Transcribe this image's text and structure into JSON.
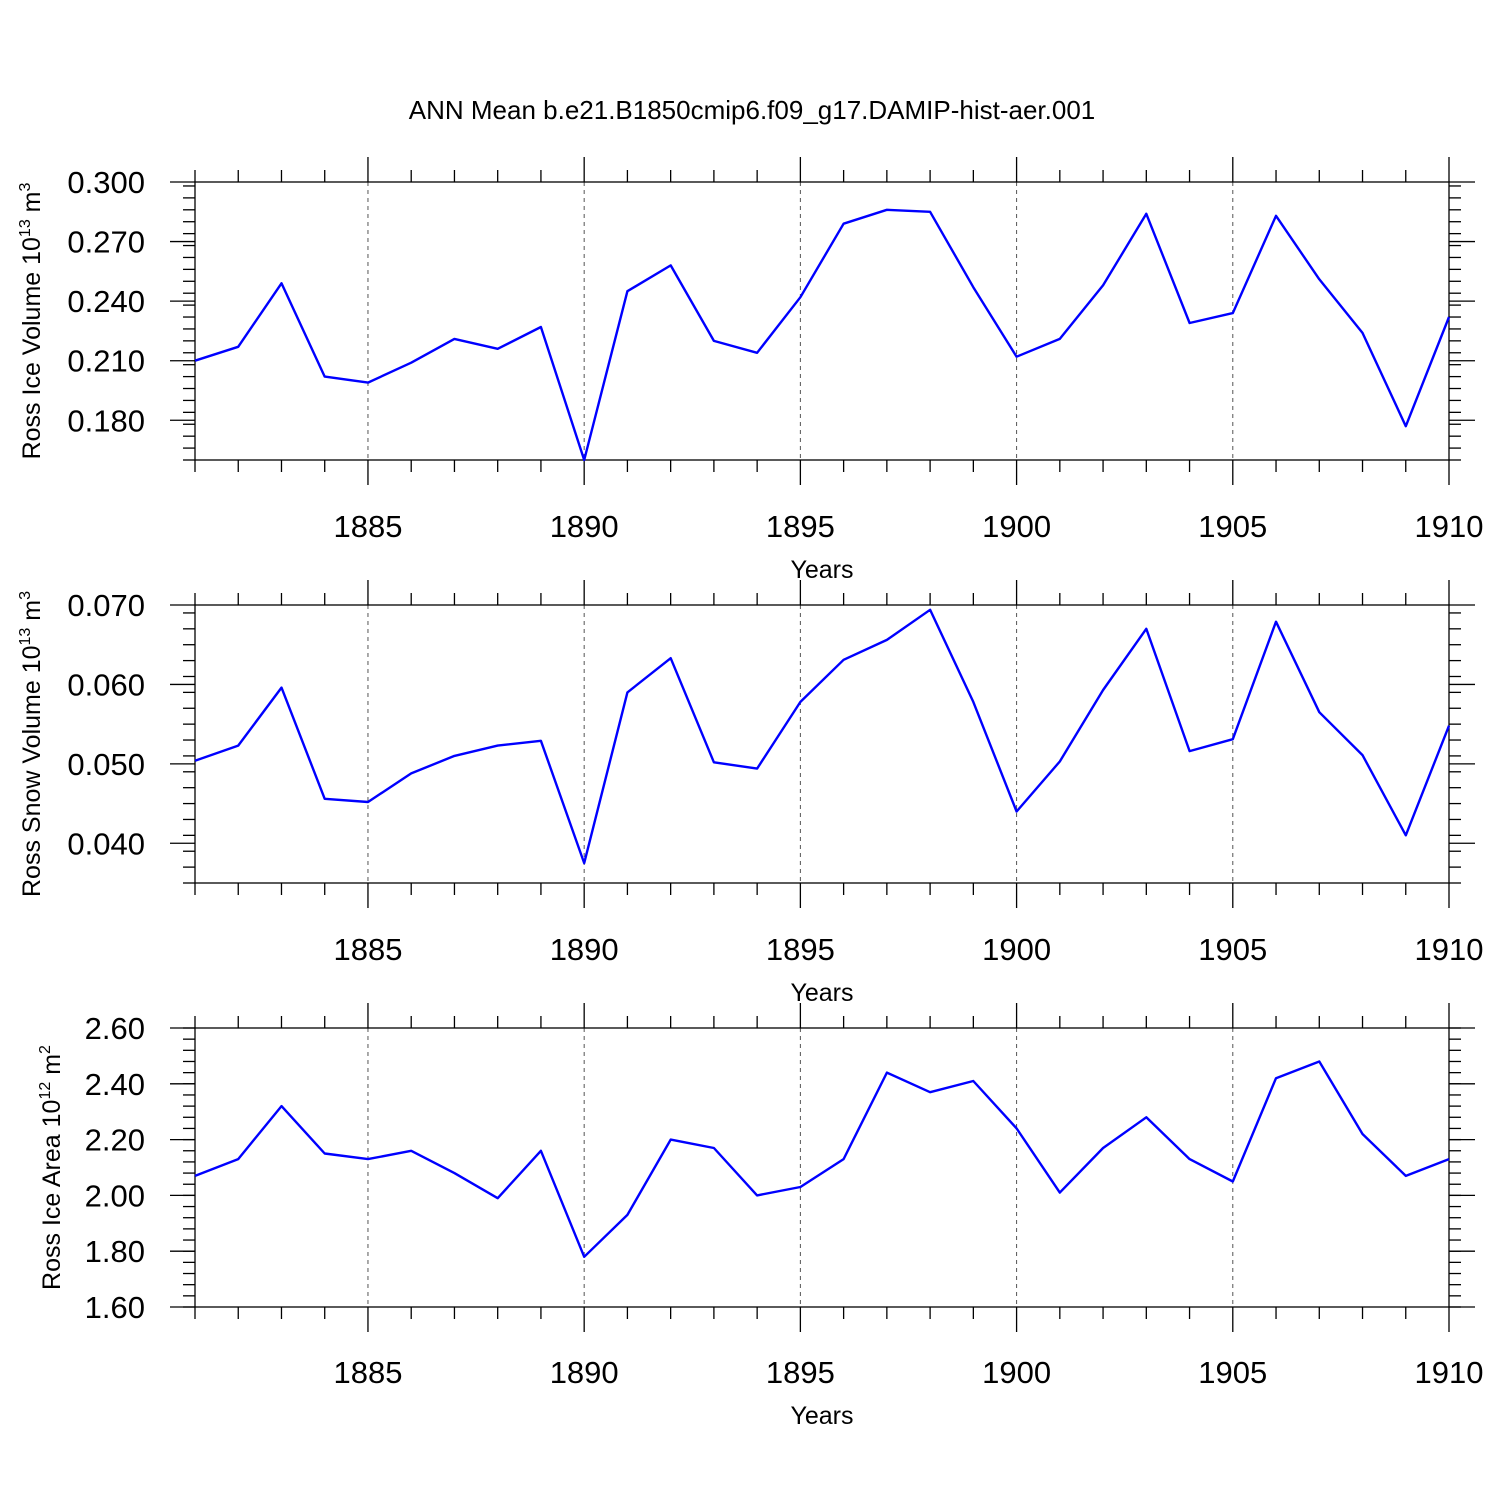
{
  "title": "ANN Mean b.e21.B1850cmip6.f09_g17.DAMIP-hist-aer.001",
  "colors": {
    "line": "#0000ff",
    "axis": "#000000",
    "grid": "#555555"
  },
  "chart_data": [
    {
      "type": "line",
      "xlabel": "Years",
      "ylabel": {
        "prefix": "Ross Ice Volume 10",
        "exp": "13",
        "unit": " m",
        "unit_exp": "3"
      },
      "xlim": [
        1881,
        1910
      ],
      "ylim": [
        0.16,
        0.3
      ],
      "xticks": [
        1885,
        1890,
        1895,
        1900,
        1905,
        1910
      ],
      "yticks": [
        0.18,
        0.21,
        0.24,
        0.27,
        0.3
      ],
      "ytick_labels": [
        "0.180",
        "0.210",
        "0.240",
        "0.270",
        "0.300"
      ],
      "grid_x": "dashed",
      "x": [
        1881,
        1882,
        1883,
        1884,
        1885,
        1886,
        1887,
        1888,
        1889,
        1890,
        1891,
        1892,
        1893,
        1894,
        1895,
        1896,
        1897,
        1898,
        1899,
        1900,
        1901,
        1902,
        1903,
        1904,
        1905,
        1906,
        1907,
        1908,
        1909,
        1910
      ],
      "y": [
        0.21,
        0.217,
        0.249,
        0.202,
        0.199,
        0.209,
        0.221,
        0.216,
        0.227,
        0.16,
        0.245,
        0.258,
        0.22,
        0.214,
        0.242,
        0.279,
        0.286,
        0.285,
        0.247,
        0.212,
        0.221,
        0.248,
        0.284,
        0.229,
        0.234,
        0.283,
        0.251,
        0.224,
        0.177,
        0.232
      ]
    },
    {
      "type": "line",
      "xlabel": "Years",
      "ylabel": {
        "prefix": "Ross Snow Volume 10",
        "exp": "13",
        "unit": " m",
        "unit_exp": "3"
      },
      "xlim": [
        1881,
        1910
      ],
      "ylim": [
        0.035,
        0.07
      ],
      "xticks": [
        1885,
        1890,
        1895,
        1900,
        1905,
        1910
      ],
      "yticks": [
        0.04,
        0.05,
        0.06,
        0.07
      ],
      "ytick_labels": [
        "0.040",
        "0.050",
        "0.060",
        "0.070"
      ],
      "grid_x": "dashed",
      "x": [
        1881,
        1882,
        1883,
        1884,
        1885,
        1886,
        1887,
        1888,
        1889,
        1890,
        1891,
        1892,
        1893,
        1894,
        1895,
        1896,
        1897,
        1898,
        1899,
        1900,
        1901,
        1902,
        1903,
        1904,
        1905,
        1906,
        1907,
        1908,
        1909,
        1910
      ],
      "y": [
        0.0504,
        0.0523,
        0.0596,
        0.0456,
        0.0452,
        0.0488,
        0.051,
        0.0523,
        0.0529,
        0.0375,
        0.059,
        0.0633,
        0.0502,
        0.0494,
        0.0578,
        0.0631,
        0.0656,
        0.0694,
        0.0578,
        0.044,
        0.0503,
        0.0593,
        0.067,
        0.0516,
        0.0531,
        0.0679,
        0.0565,
        0.0511,
        0.041,
        0.0548
      ]
    },
    {
      "type": "line",
      "xlabel": "Years",
      "ylabel": {
        "prefix": "Ross Ice Area 10",
        "exp": "12",
        "unit": " m",
        "unit_exp": "2"
      },
      "xlim": [
        1881,
        1910
      ],
      "ylim": [
        1.6,
        2.6
      ],
      "xticks": [
        1885,
        1890,
        1895,
        1900,
        1905,
        1910
      ],
      "yticks": [
        1.6,
        1.8,
        2.0,
        2.2,
        2.4,
        2.6
      ],
      "ytick_labels": [
        "1.60",
        "1.80",
        "2.00",
        "2.20",
        "2.40",
        "2.60"
      ],
      "grid_x": "dashed",
      "x": [
        1881,
        1882,
        1883,
        1884,
        1885,
        1886,
        1887,
        1888,
        1889,
        1890,
        1891,
        1892,
        1893,
        1894,
        1895,
        1896,
        1897,
        1898,
        1899,
        1900,
        1901,
        1902,
        1903,
        1904,
        1905,
        1906,
        1907,
        1908,
        1909,
        1910
      ],
      "y": [
        2.07,
        2.13,
        2.32,
        2.15,
        2.13,
        2.16,
        2.08,
        1.99,
        2.16,
        1.78,
        1.93,
        2.2,
        2.17,
        2.0,
        2.03,
        2.13,
        2.44,
        2.37,
        2.41,
        2.24,
        2.01,
        2.17,
        2.28,
        2.13,
        2.05,
        2.42,
        2.48,
        2.22,
        2.07,
        2.13
      ]
    }
  ]
}
